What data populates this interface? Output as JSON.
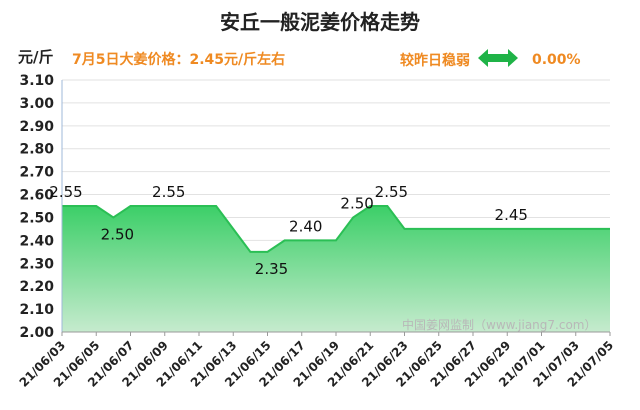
{
  "title": "安丘一般泥姜价格走势",
  "unit_label": "元/斤",
  "subtitle": "7月5日大姜价格：2.45元/斤左右",
  "compare": {
    "label": "较昨日稳弱",
    "value": "0.00%",
    "icon": "double-arrow-icon"
  },
  "watermark": "中国姜网监制（www.jiang7.com）",
  "colors": {
    "accent": "#ef8a22",
    "arrow": "#1fb347",
    "line": "#2bbf55",
    "fill_top": "#3ccf68",
    "fill_bottom": "#c6ebce"
  },
  "chart_data": {
    "type": "area",
    "ylim": [
      2.0,
      3.1
    ],
    "yticks": [
      "3.10",
      "3.00",
      "2.90",
      "2.80",
      "2.70",
      "2.60",
      "2.50",
      "2.40",
      "2.30",
      "2.20",
      "2.10",
      "2.00"
    ],
    "xticks": [
      "21/06/03",
      "21/06/05",
      "21/06/07",
      "21/06/09",
      "21/06/11",
      "21/06/13",
      "21/06/15",
      "21/06/17",
      "21/06/19",
      "21/06/21",
      "21/06/23",
      "21/06/25",
      "21/06/27",
      "21/06/29",
      "21/07/01",
      "21/07/03",
      "21/07/05"
    ],
    "x": [
      "21/06/03",
      "21/06/05",
      "21/06/06",
      "21/06/07",
      "21/06/12",
      "21/06/14",
      "21/06/15",
      "21/06/16",
      "21/06/19",
      "21/06/20",
      "21/06/21",
      "21/06/22",
      "21/06/23",
      "21/07/05"
    ],
    "values": [
      2.55,
      2.55,
      2.5,
      2.55,
      2.55,
      2.35,
      2.35,
      2.4,
      2.4,
      2.5,
      2.55,
      2.55,
      2.45,
      2.45
    ],
    "data_labels": [
      {
        "x": "21/06/03",
        "text": "2.55",
        "pos": "above"
      },
      {
        "x": "21/06/06",
        "text": "2.50",
        "pos": "below"
      },
      {
        "x": "21/06/09",
        "text": "2.55",
        "pos": "above"
      },
      {
        "x": "21/06/15",
        "text": "2.35",
        "pos": "below"
      },
      {
        "x": "21/06/17",
        "text": "2.40",
        "pos": "above"
      },
      {
        "x": "21/06/20",
        "text": "2.50",
        "pos": "above"
      },
      {
        "x": "21/06/22",
        "text": "2.55",
        "pos": "above"
      },
      {
        "x": "21/06/29",
        "text": "2.45",
        "pos": "above"
      }
    ]
  }
}
